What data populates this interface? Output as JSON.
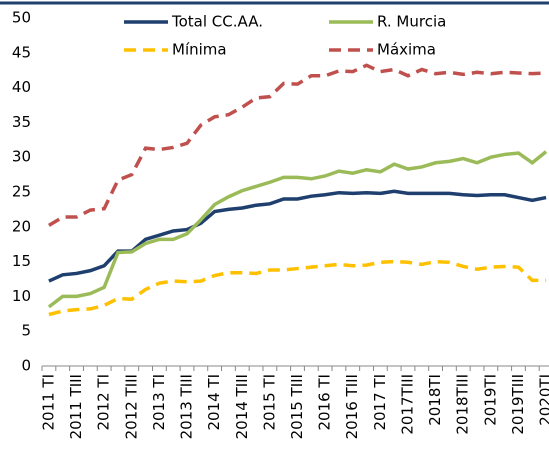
{
  "chart_data": {
    "type": "line",
    "categories": [
      "2011 TI",
      null,
      "2011 TIII",
      null,
      "2012 TI",
      null,
      "2012 TIII",
      null,
      "2013 TI",
      null,
      "2013 TIII",
      null,
      "2014 TI",
      null,
      "2014 TIII",
      null,
      "2015 TI",
      null,
      "2015 TIII",
      null,
      "2016 TI",
      null,
      "2016 TIII",
      null,
      "2017 TI",
      null,
      "2017TIII",
      null,
      "2018TI",
      null,
      "2018TIII",
      null,
      "2019TI",
      null,
      "2019TIII",
      null,
      "2020TI"
    ],
    "series": [
      {
        "name": "Total CC.AA.",
        "color": "#1f3f6e",
        "dash": "solid",
        "values": [
          12.2,
          13.1,
          13.3,
          13.7,
          14.4,
          16.5,
          16.5,
          18.2,
          18.8,
          19.4,
          19.6,
          20.5,
          22.2,
          22.5,
          22.7,
          23.1,
          23.3,
          24.0,
          24.0,
          24.4,
          24.6,
          24.9,
          24.8,
          24.9,
          24.8,
          25.1,
          24.8,
          24.8,
          24.8,
          24.8,
          24.6,
          24.5,
          24.6,
          24.6,
          24.2,
          23.8,
          24.2
        ]
      },
      {
        "name": "R. Murcia",
        "color": "#9bbb59",
        "dash": "solid",
        "values": [
          8.5,
          10.0,
          10.0,
          10.4,
          11.3,
          16.3,
          16.4,
          17.6,
          18.2,
          18.2,
          19.0,
          21.0,
          23.2,
          24.3,
          25.2,
          25.8,
          26.4,
          27.1,
          27.1,
          26.9,
          27.3,
          28.0,
          27.7,
          28.2,
          27.9,
          29.0,
          28.3,
          28.6,
          29.2,
          29.4,
          29.8,
          29.2,
          30.0,
          30.4,
          30.6,
          29.2,
          30.8
        ]
      },
      {
        "name": "Mínima",
        "color": "#ffc000",
        "dash": "dashed",
        "values": [
          7.4,
          7.9,
          8.1,
          8.2,
          8.7,
          9.7,
          9.6,
          11.0,
          11.9,
          12.2,
          12.1,
          12.2,
          13.0,
          13.4,
          13.4,
          13.3,
          13.8,
          13.8,
          14.0,
          14.2,
          14.4,
          14.6,
          14.4,
          14.5,
          14.9,
          15.0,
          14.9,
          14.6,
          15.0,
          14.9,
          14.3,
          13.9,
          14.2,
          14.3,
          14.2,
          12.3,
          12.3
        ]
      },
      {
        "name": "Máxima",
        "color": "#c0504d",
        "dash": "dashed",
        "values": [
          20.2,
          21.4,
          21.4,
          22.4,
          22.6,
          26.7,
          27.5,
          31.3,
          31.1,
          31.4,
          32.0,
          34.6,
          35.8,
          36.1,
          37.2,
          38.5,
          38.7,
          40.6,
          40.5,
          41.7,
          41.7,
          42.4,
          42.3,
          43.2,
          42.3,
          42.6,
          41.7,
          42.6,
          42.0,
          42.2,
          41.9,
          42.2,
          42.0,
          42.2,
          42.1,
          42.0,
          42.1
        ]
      }
    ],
    "ylim": [
      0,
      50
    ],
    "yticks": [
      0,
      5,
      10,
      15,
      20,
      25,
      30,
      35,
      40,
      45,
      50
    ],
    "grid": false
  }
}
